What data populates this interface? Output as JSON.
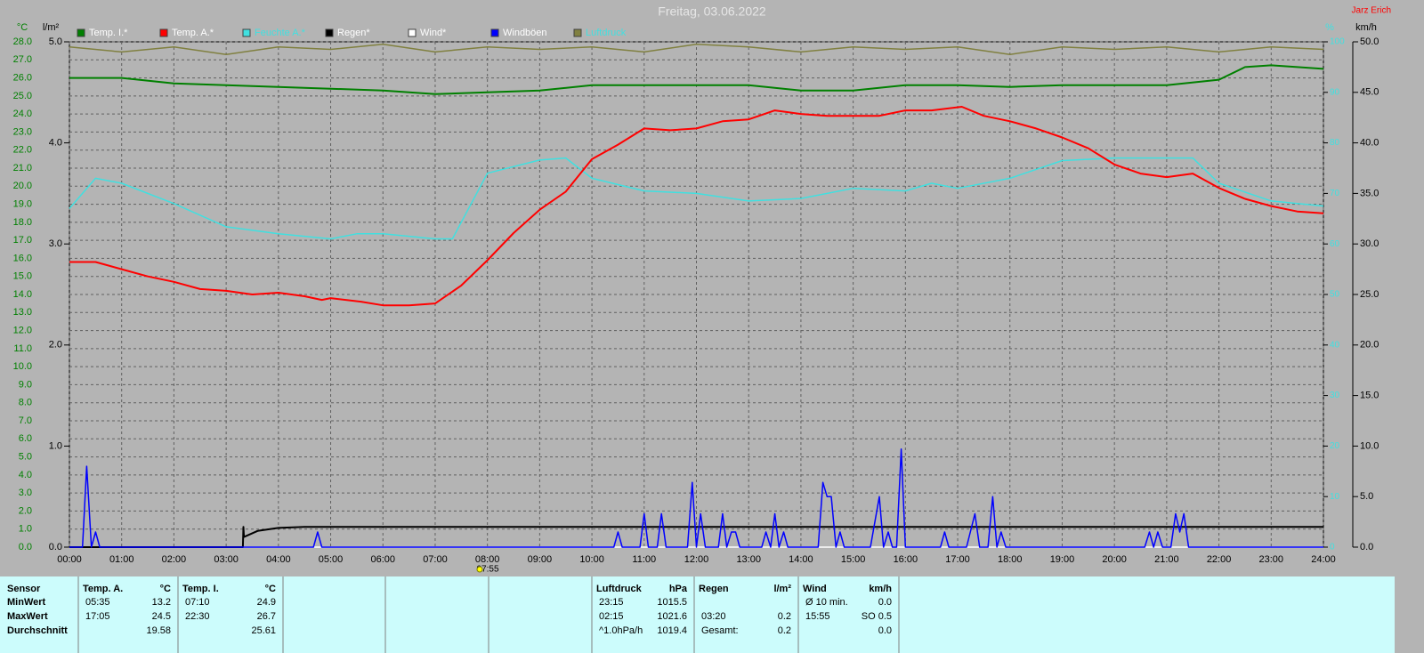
{
  "chart_data": {
    "type": "line",
    "title": "Freitag, 03.06.2022",
    "author": "Jarz Erich",
    "annotation": "07:55",
    "ylabel": "°C",
    "y_rain_label": "l/m²",
    "y2label": "%",
    "y3label": "km/h",
    "xlim": [
      0,
      24
    ],
    "xticks": [
      {
        "value": 0,
        "label": "00:00"
      },
      {
        "value": 1,
        "label": "01:00"
      },
      {
        "value": 2,
        "label": "02:00"
      },
      {
        "value": 3,
        "label": "03:00"
      },
      {
        "value": 4,
        "label": "04:00"
      },
      {
        "value": 5,
        "label": "05:00"
      },
      {
        "value": 6,
        "label": "06:00"
      },
      {
        "value": 7,
        "label": "07:00"
      },
      {
        "value": 8,
        "label": "08:00"
      },
      {
        "value": 9,
        "label": "09:00"
      },
      {
        "value": 10,
        "label": "10:00"
      },
      {
        "value": 11,
        "label": "11:00"
      },
      {
        "value": 12,
        "label": "12:00"
      },
      {
        "value": 13,
        "label": "13:00"
      },
      {
        "value": 14,
        "label": "14:00"
      },
      {
        "value": 15,
        "label": "15:00"
      },
      {
        "value": 16,
        "label": "16:00"
      },
      {
        "value": 17,
        "label": "17:00"
      },
      {
        "value": 18,
        "label": "18:00"
      },
      {
        "value": 19,
        "label": "19:00"
      },
      {
        "value": 20,
        "label": "20:00"
      },
      {
        "value": 21,
        "label": "21:00"
      },
      {
        "value": 22,
        "label": "22:00"
      },
      {
        "value": 23,
        "label": "23:00"
      },
      {
        "value": 24,
        "label": "24:00"
      }
    ],
    "ylim": [
      0,
      28
    ],
    "yticks": [
      {
        "value": 0,
        "label": "0.0"
      },
      {
        "value": 1,
        "label": "1.0"
      },
      {
        "value": 2,
        "label": "2.0"
      },
      {
        "value": 3,
        "label": "3.0"
      },
      {
        "value": 4,
        "label": "4.0"
      },
      {
        "value": 5,
        "label": "5.0"
      },
      {
        "value": 6,
        "label": "6.0"
      },
      {
        "value": 7,
        "label": "7.0"
      },
      {
        "value": 8,
        "label": "8.0"
      },
      {
        "value": 9,
        "label": "9.0"
      },
      {
        "value": 10,
        "label": "10.0"
      },
      {
        "value": 11,
        "label": "11.0"
      },
      {
        "value": 12,
        "label": "12.0"
      },
      {
        "value": 13,
        "label": "13.0"
      },
      {
        "value": 14,
        "label": "14.0"
      },
      {
        "value": 15,
        "label": "15.0"
      },
      {
        "value": 16,
        "label": "16.0"
      },
      {
        "value": 17,
        "label": "17.0"
      },
      {
        "value": 18,
        "label": "18.0"
      },
      {
        "value": 19,
        "label": "19.0"
      },
      {
        "value": 20,
        "label": "20.0"
      },
      {
        "value": 21,
        "label": "21.0"
      },
      {
        "value": 22,
        "label": "22.0"
      },
      {
        "value": 23,
        "label": "23.0"
      },
      {
        "value": 24,
        "label": "24.0"
      },
      {
        "value": 25,
        "label": "25.0"
      },
      {
        "value": 26,
        "label": "26.0"
      },
      {
        "value": 27,
        "label": "27.0"
      },
      {
        "value": 28,
        "label": "28.0"
      }
    ],
    "y_rain_lim": [
      0,
      5
    ],
    "y_rain_ticks": [
      {
        "value": 0,
        "label": "0.0"
      },
      {
        "value": 1,
        "label": "1.0"
      },
      {
        "value": 2,
        "label": "2.0"
      },
      {
        "value": 3,
        "label": "3.0"
      },
      {
        "value": 4,
        "label": "4.0"
      },
      {
        "value": 5,
        "label": "5.0"
      }
    ],
    "y2lim": [
      0,
      100
    ],
    "y2ticks": [
      0,
      10,
      20,
      30,
      40,
      50,
      60,
      70,
      80,
      90,
      100
    ],
    "y3lim": [
      0,
      50
    ],
    "y3ticks": [
      {
        "value": 0,
        "label": "0.0"
      },
      {
        "value": 5,
        "label": "5.0"
      },
      {
        "value": 10,
        "label": "10.0"
      },
      {
        "value": 15,
        "label": "15.0"
      },
      {
        "value": 20,
        "label": "20.0"
      },
      {
        "value": 25,
        "label": "25.0"
      },
      {
        "value": 30,
        "label": "30.0"
      },
      {
        "value": 35,
        "label": "35.0"
      },
      {
        "value": 40,
        "label": "40.0"
      },
      {
        "value": 45,
        "label": "45.0"
      },
      {
        "value": 50,
        "label": "50.0"
      }
    ],
    "grid": true,
    "series": [
      {
        "name": "Temp. I.*",
        "color": "#008000",
        "axis": "y",
        "x": [
          0,
          1,
          2,
          3,
          4,
          5,
          6,
          7,
          8,
          9,
          10,
          11,
          12,
          13,
          14,
          15,
          16,
          17,
          18,
          19,
          20,
          21,
          22,
          22.5,
          23,
          24
        ],
        "values": [
          26.0,
          26.0,
          25.7,
          25.6,
          25.5,
          25.4,
          25.3,
          25.1,
          25.2,
          25.3,
          25.6,
          25.6,
          25.6,
          25.6,
          25.3,
          25.3,
          25.6,
          25.6,
          25.5,
          25.6,
          25.6,
          25.6,
          25.9,
          26.6,
          26.7,
          26.5
        ]
      },
      {
        "name": "Temp. A.*",
        "color": "#ff0000",
        "axis": "y",
        "x": [
          0,
          0.5,
          1,
          1.5,
          2,
          2.5,
          3,
          3.5,
          4,
          4.5,
          4.83,
          5,
          5.58,
          6,
          6.5,
          7,
          7.5,
          8,
          8.5,
          9,
          9.5,
          10,
          10.5,
          11,
          11.5,
          12,
          12.5,
          13,
          13.5,
          14,
          14.5,
          15,
          15.5,
          16,
          16.5,
          17.08,
          17.5,
          18,
          18.5,
          19,
          19.5,
          20,
          20.5,
          21,
          21.5,
          22,
          22.5,
          23,
          23.5,
          24
        ],
        "values": [
          15.8,
          15.8,
          15.4,
          15.0,
          14.7,
          14.3,
          14.2,
          14.0,
          14.1,
          13.9,
          13.7,
          13.8,
          13.6,
          13.4,
          13.4,
          13.5,
          14.5,
          15.9,
          17.4,
          18.7,
          19.7,
          21.5,
          22.3,
          23.2,
          23.1,
          23.2,
          23.6,
          23.7,
          24.2,
          24.0,
          23.9,
          23.9,
          23.9,
          24.2,
          24.2,
          24.4,
          23.9,
          23.6,
          23.2,
          22.7,
          22.1,
          21.2,
          20.7,
          20.5,
          20.7,
          19.9,
          19.3,
          18.9,
          18.6,
          18.5
        ]
      },
      {
        "name": "Feuchte A.*",
        "color": "#40e0e0",
        "axis": "y2",
        "x": [
          0,
          0.5,
          1,
          2,
          3,
          4,
          5,
          5.5,
          6,
          7,
          7.33,
          8,
          9,
          9.5,
          10,
          11,
          12,
          13,
          14,
          15,
          16,
          16.5,
          17,
          18,
          19,
          20,
          21,
          21.5,
          22,
          23,
          24
        ],
        "values": [
          67,
          73,
          72,
          68,
          63.4,
          62,
          61,
          62,
          62,
          61,
          61,
          74,
          76.6,
          77,
          73,
          70.5,
          70,
          68.5,
          69,
          71,
          70.5,
          72,
          71,
          73,
          76.5,
          77,
          77,
          77,
          72,
          68.5,
          67.5
        ]
      },
      {
        "name": "Regen*",
        "color": "#000000",
        "axis": "y_rain",
        "x": [
          0,
          3.32,
          3.33,
          3.34,
          3.6,
          4,
          4.5,
          24
        ],
        "values": [
          0,
          0,
          0.2,
          0.1,
          0.16,
          0.19,
          0.2,
          0.2
        ]
      },
      {
        "name": "Wind*",
        "color": "#ffffff",
        "axis": "y3",
        "x": [
          0,
          24
        ],
        "values": [
          0,
          0
        ]
      },
      {
        "name": "Windböen",
        "color": "#0000ff",
        "axis": "y3",
        "x": [
          0,
          0.25,
          0.33,
          0.42,
          0.5,
          0.58,
          4.67,
          4.75,
          4.83,
          10.42,
          10.5,
          10.58,
          10.92,
          11,
          11.08,
          11.25,
          11.33,
          11.42,
          11.83,
          11.92,
          12,
          12.08,
          12.17,
          12.42,
          12.5,
          12.58,
          12.67,
          12.75,
          12.83,
          13.25,
          13.33,
          13.42,
          13.5,
          13.58,
          13.67,
          13.75,
          14.33,
          14.42,
          14.5,
          14.58,
          14.67,
          14.75,
          14.83,
          15.33,
          15.5,
          15.58,
          15.67,
          15.75,
          15.83,
          15.92,
          16,
          16.67,
          16.75,
          16.83,
          17.17,
          17.33,
          17.42,
          17.58,
          17.67,
          17.75,
          17.83,
          17.92,
          20.58,
          20.67,
          20.75,
          20.83,
          20.92,
          21.08,
          21.17,
          21.25,
          21.33,
          21.42,
          24
        ],
        "values": [
          0,
          0,
          8.0,
          0,
          1.5,
          0,
          0,
          1.5,
          0,
          0,
          1.5,
          0,
          0,
          3.3,
          0,
          0,
          3.3,
          0,
          0,
          6.4,
          0,
          3.3,
          0,
          0,
          3.3,
          0,
          1.5,
          1.5,
          0,
          0,
          1.5,
          0,
          3.3,
          0,
          1.5,
          0,
          0,
          6.4,
          5.0,
          5.0,
          0,
          1.5,
          0,
          0,
          5.0,
          0,
          1.5,
          0,
          0,
          9.7,
          0,
          0,
          1.5,
          0,
          0,
          3.3,
          0,
          0,
          5.0,
          0,
          1.5,
          0,
          0,
          1.5,
          0,
          1.5,
          0,
          0,
          3.3,
          1.5,
          3.3,
          0,
          0
        ]
      },
      {
        "name": "Luftdruck",
        "color": "#808040",
        "axis": "y2",
        "x": [
          0,
          1,
          2,
          3,
          4,
          5,
          6,
          7,
          8,
          9,
          10,
          11,
          12,
          13,
          14,
          15,
          16,
          17,
          18,
          19,
          20,
          21,
          22,
          23,
          24
        ],
        "values": [
          99,
          98,
          99,
          97.5,
          99,
          98.5,
          99.5,
          98,
          99,
          98.5,
          99,
          98,
          99.5,
          99,
          98,
          99,
          98.5,
          99,
          97.5,
          99,
          98.5,
          99,
          98,
          99,
          98.5
        ]
      }
    ]
  },
  "table": {
    "row_labels": {
      "header": "Sensor",
      "rows": [
        "MinWert",
        "MaxWert",
        "Durchschnitt"
      ]
    },
    "blocks": [
      {
        "header": "Temp. A.",
        "unit": "°C",
        "rows": [
          {
            "time": "05:35",
            "value": "13.2"
          },
          {
            "time": "17:05",
            "value": "24.5"
          },
          {
            "value": "19.58"
          }
        ]
      },
      {
        "header": "Temp. I.",
        "unit": "°C",
        "rows": [
          {
            "time": "07:10",
            "value": "24.9"
          },
          {
            "time": "22:30",
            "value": "26.7"
          },
          {
            "value": "25.61"
          }
        ]
      },
      {
        "header": "Luftdruck",
        "unit": "hPa",
        "rows": [
          {
            "time": "23:15",
            "value": "1015.5"
          },
          {
            "time": "02:15",
            "value": "1021.6"
          },
          {
            "time": "^1.0hPa/h",
            "value": "1019.4"
          }
        ]
      },
      {
        "header": "Regen",
        "unit": "l/m²",
        "rows": [
          null,
          {
            "time": "03:20",
            "value": "0.2"
          },
          {
            "time": "Gesamt:",
            "value": "0.2"
          }
        ]
      },
      {
        "header": "Wind",
        "unit": "km/h",
        "rows": [
          {
            "time": "Ø 10 min.",
            "value": "0.0"
          },
          {
            "time": "15:55",
            "value": "SO 0.5"
          },
          {
            "value": "0.0"
          }
        ]
      }
    ]
  }
}
